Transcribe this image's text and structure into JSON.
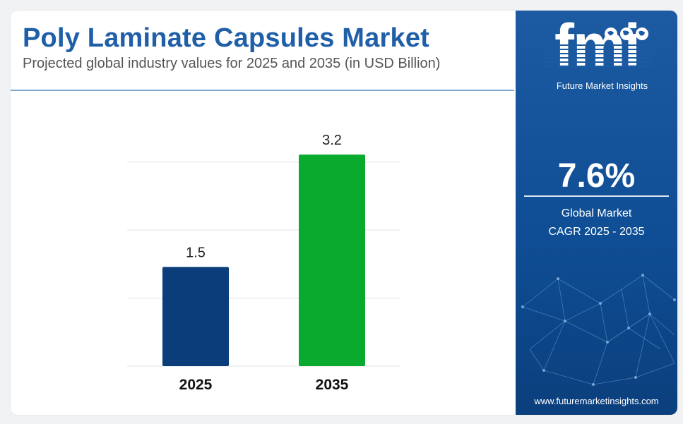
{
  "header": {
    "title": "Poly Laminate Capsules Market",
    "subtitle": "Projected global industry values for 2025 and 2035 (in USD Billion)"
  },
  "chart_data": {
    "type": "bar",
    "title": "Poly Laminate Capsules Market",
    "subtitle": "Projected global industry values for 2025 and 2035 (in USD Billion)",
    "categories": [
      "2025",
      "2035"
    ],
    "values": [
      1.5,
      3.2
    ],
    "value_labels": [
      "1.5",
      "3.2"
    ],
    "bar_colors": [
      "#0b3d7a",
      "#0aaa2e"
    ],
    "ylim": [
      0,
      3.5
    ],
    "grid": true,
    "xlabel": "",
    "ylabel": ""
  },
  "sidebar": {
    "logo_text": "fmi",
    "logo_subtext": "Future Market Insights",
    "cagr_value": "7.6%",
    "cagr_label_line1": "Global Market",
    "cagr_label_line2": "CAGR 2025 - 2035",
    "website": "www.futuremarketinsights.com"
  },
  "colors": {
    "title": "#1f5fa8",
    "sidebar_bg": "#1c5aa2",
    "strip": [
      "#7ac143",
      "#f26522",
      "#8b3a96"
    ]
  }
}
